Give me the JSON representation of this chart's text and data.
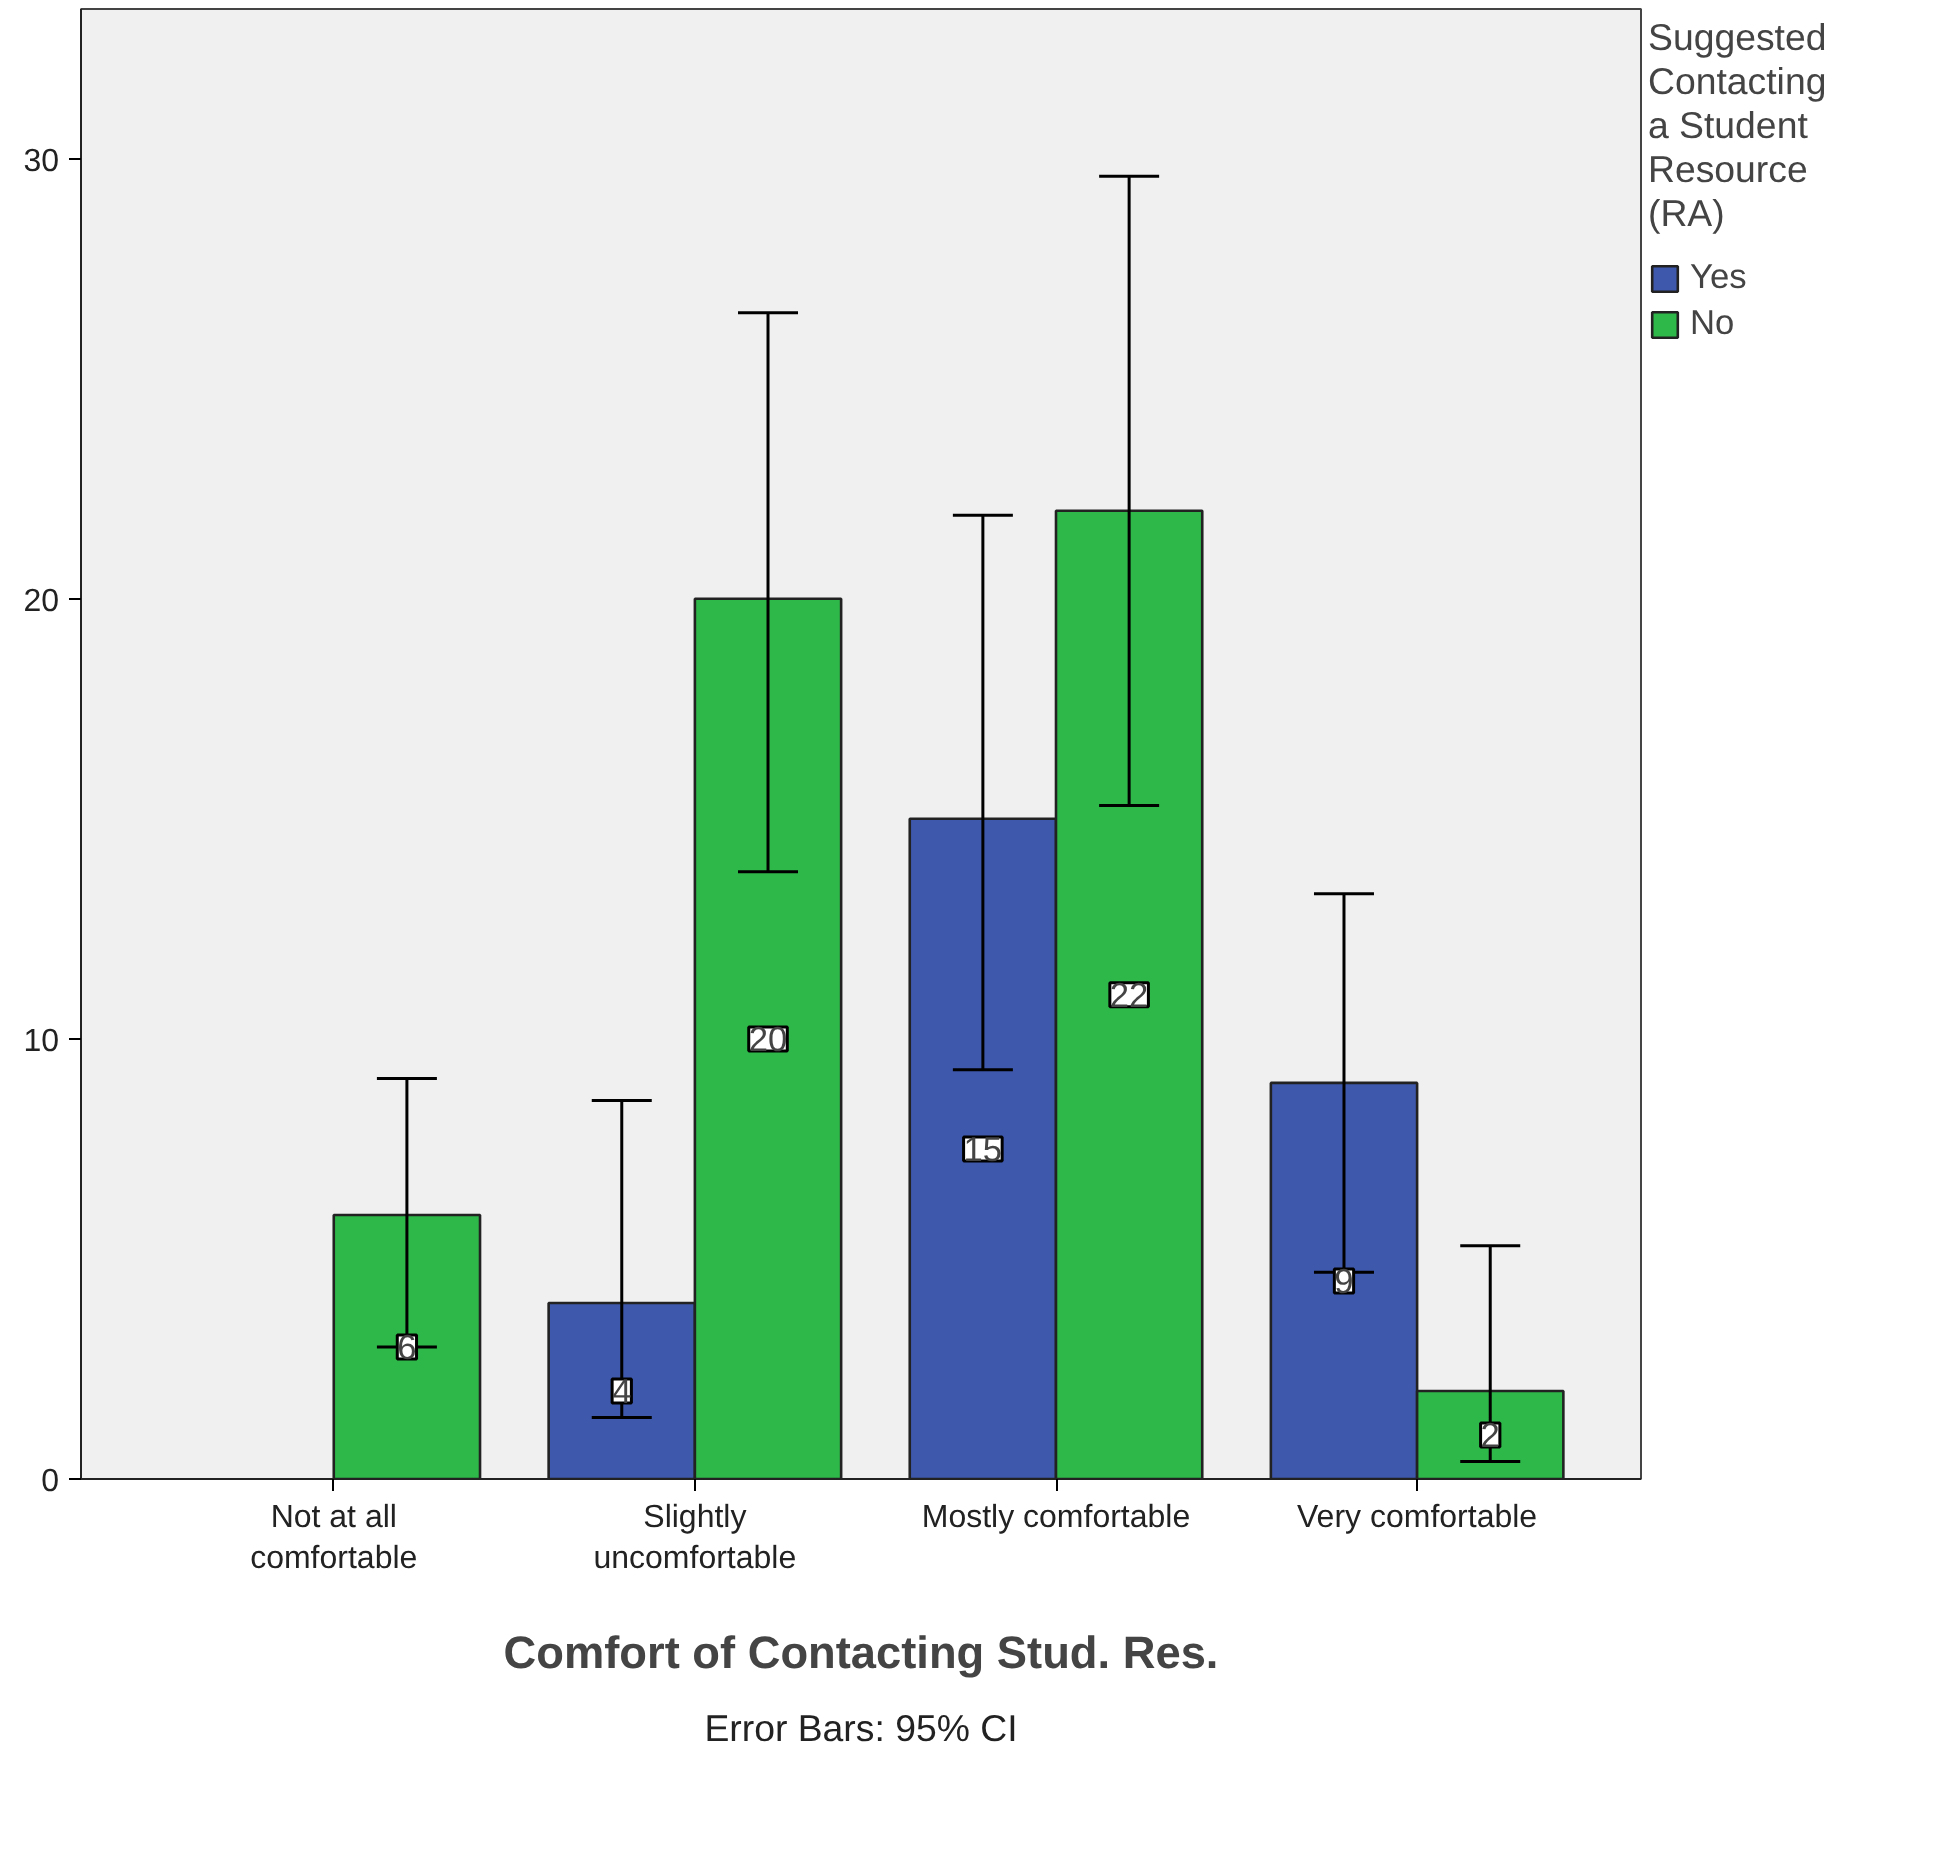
{
  "chart_data": {
    "type": "bar",
    "xlabel": "Comfort of Contacting Stud. Res.",
    "legend_title": "Suggested Contacting a Student Resource (RA)",
    "categories": [
      "Not at all\ncomfortable",
      "Slightly\nuncomfortable",
      "Mostly comfortable",
      "Very comfortable"
    ],
    "series": [
      {
        "name": "Yes",
        "color": "#3e58ac",
        "values": [
          null,
          4,
          15,
          9
        ],
        "errors": [
          null,
          [
            1.4,
            8.6
          ],
          [
            9.3,
            21.9
          ],
          [
            4.7,
            13.3
          ]
        ]
      },
      {
        "name": "No",
        "color": "#2fb84a",
        "values": [
          6,
          20,
          22,
          2
        ],
        "errors": [
          [
            3.0,
            9.1
          ],
          [
            13.8,
            26.5
          ],
          [
            15.3,
            29.6
          ],
          [
            0.4,
            5.3
          ]
        ]
      }
    ],
    "ylim": [
      0,
      33.4
    ],
    "yticks": [
      0,
      10,
      20,
      30
    ],
    "grid": false,
    "legend": "top right",
    "data_labels": true,
    "annotations": [
      "Error Bars: 95% CI"
    ]
  }
}
